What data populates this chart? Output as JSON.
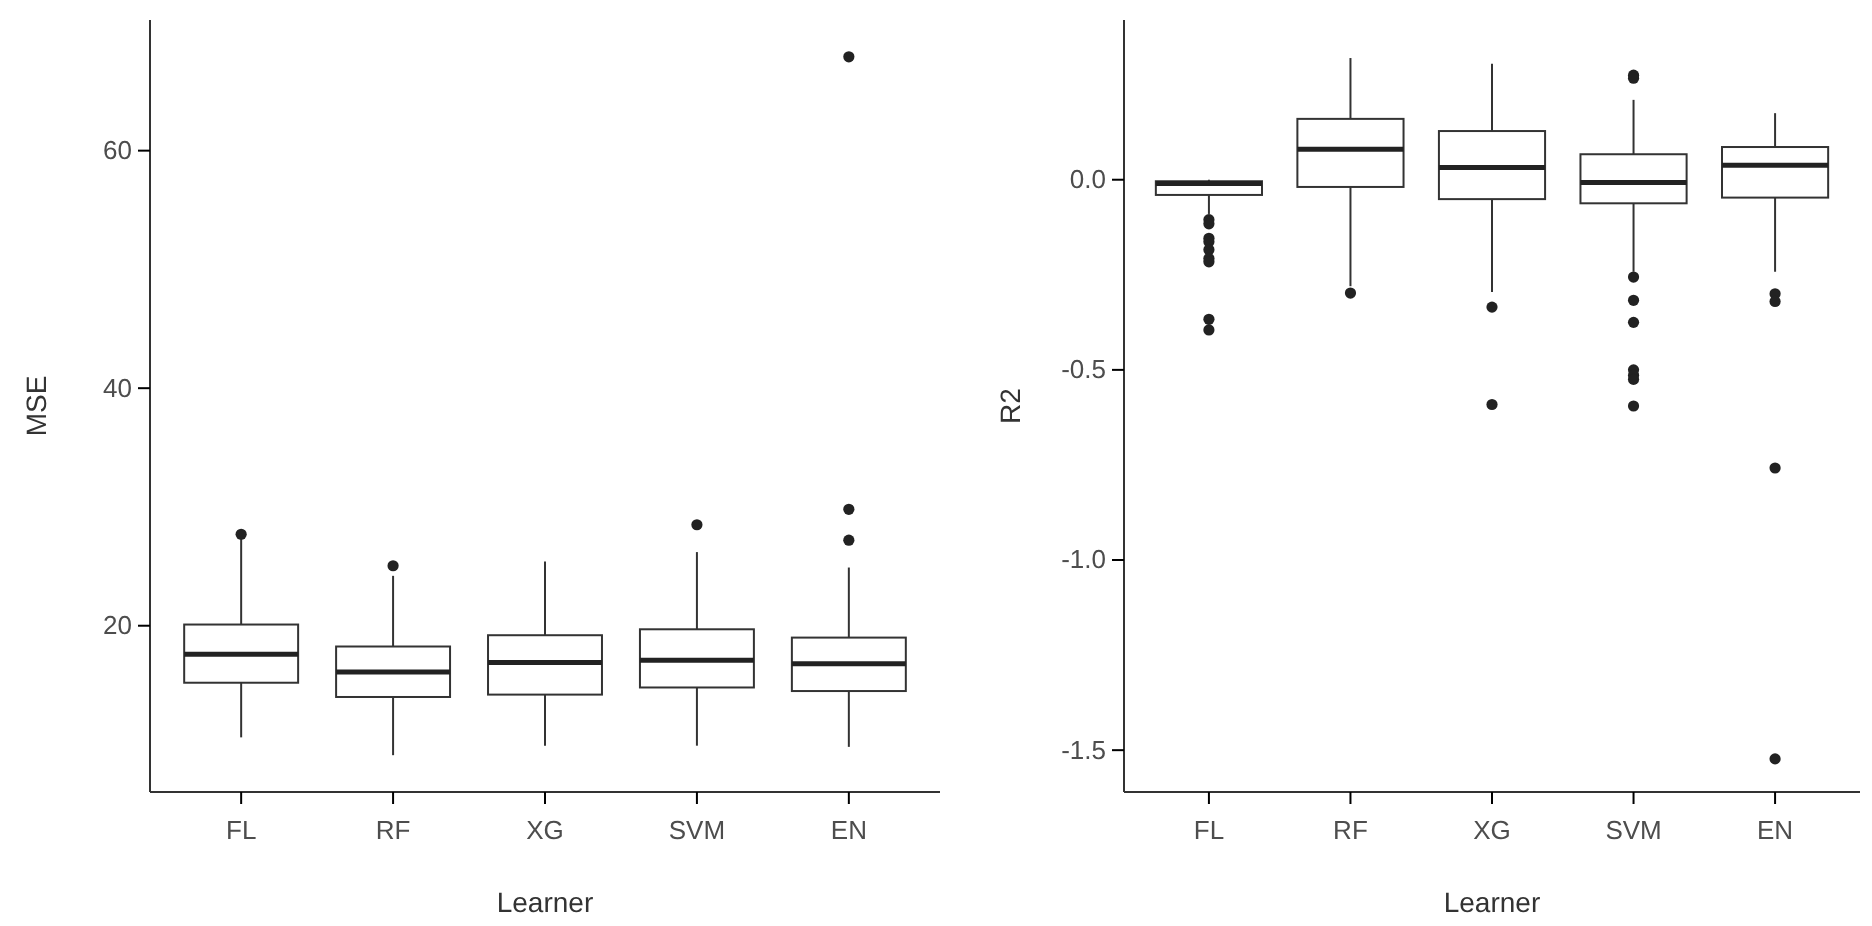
{
  "chart_data": [
    {
      "type": "box",
      "xlabel": "Learner",
      "ylabel": "MSE",
      "categories": [
        "FL",
        "RF",
        "XG",
        "SVM",
        "EN"
      ],
      "ylim": [
        6,
        71
      ],
      "yticks": [
        20,
        40,
        60
      ],
      "grid": false,
      "boxes": [
        {
          "low": 10.6,
          "q1": 15.2,
          "median": 17.6,
          "q3": 20.1,
          "high": 27.4,
          "outliers": [
            27.7
          ]
        },
        {
          "low": 9.1,
          "q1": 14.0,
          "median": 16.1,
          "q3": 18.25,
          "high": 24.2,
          "outliers": [
            25.05
          ]
        },
        {
          "low": 9.9,
          "q1": 14.2,
          "median": 16.9,
          "q3": 19.2,
          "high": 25.4
        },
        {
          "low": 9.9,
          "q1": 14.8,
          "median": 17.1,
          "q3": 19.7,
          "high": 26.2,
          "outliers": [
            28.5
          ]
        },
        {
          "low": 9.8,
          "q1": 14.5,
          "median": 16.8,
          "q3": 19.0,
          "high": 24.9,
          "outliers": [
            27.2,
            29.8,
            67.9
          ]
        }
      ]
    },
    {
      "type": "box",
      "xlabel": "Learner",
      "ylabel": "R2",
      "categories": [
        "FL",
        "RF",
        "XG",
        "SVM",
        "EN"
      ],
      "ylim": [
        -1.61,
        0.42
      ],
      "yticks": [
        {
          "value": 0,
          "label": "0.0"
        },
        -0.5,
        {
          "value": -1,
          "label": "-1.0"
        },
        -1.5
      ],
      "grid": false,
      "boxes": [
        {
          "low": -0.09,
          "q1": -0.04,
          "median": -0.01,
          "q3": -0.004,
          "high": 0.0,
          "outliers": [
            -0.105,
            -0.116,
            -0.154,
            -0.163,
            -0.184,
            -0.207,
            -0.216,
            -0.367,
            -0.395
          ]
        },
        {
          "low": -0.28,
          "q1": -0.019,
          "median": 0.08,
          "q3": 0.16,
          "high": 0.32,
          "outliers": [
            -0.298
          ]
        },
        {
          "low": -0.295,
          "q1": -0.051,
          "median": 0.032,
          "q3": 0.128,
          "high": 0.305,
          "outliers": [
            -0.335,
            -0.591
          ]
        },
        {
          "low": -0.242,
          "q1": -0.062,
          "median": -0.007,
          "q3": 0.067,
          "high": 0.21,
          "outliers": [
            0.275,
            0.267,
            -0.256,
            -0.317,
            -0.375,
            -0.5,
            -0.514,
            -0.525,
            -0.595
          ]
        },
        {
          "low": -0.242,
          "q1": -0.047,
          "median": 0.038,
          "q3": 0.086,
          "high": 0.175,
          "outliers": [
            -0.3,
            -0.32,
            -0.758,
            -1.523
          ]
        }
      ]
    }
  ]
}
